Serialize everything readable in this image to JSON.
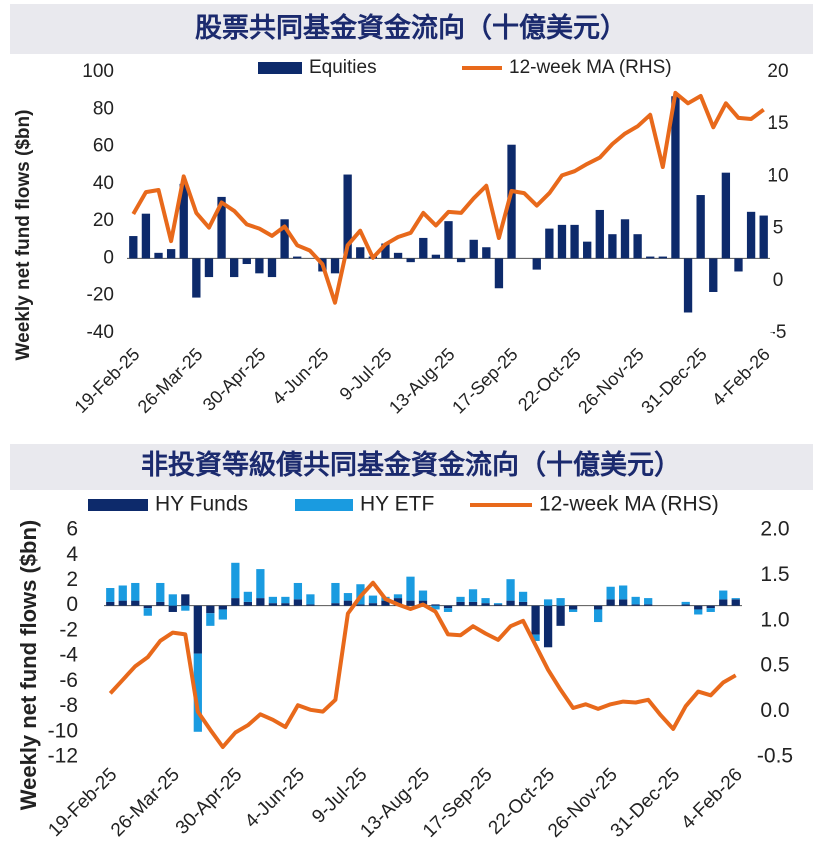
{
  "chart_data": [
    {
      "type": "bar",
      "title": "股票共同基金資金流向（十億美元）",
      "ylabel": "Weekly net fund flows ($bn)",
      "categories": [
        "19-Feb-25",
        null,
        null,
        null,
        null,
        "26-Mar-25",
        null,
        null,
        null,
        null,
        "30-Apr-25",
        null,
        null,
        null,
        null,
        "4-Jun-25",
        null,
        null,
        null,
        null,
        "9-Jul-25",
        null,
        null,
        null,
        null,
        "13-Aug-25",
        null,
        null,
        null,
        null,
        "17-Sep-25",
        null,
        null,
        null,
        null,
        "22-Oct-25",
        null,
        null,
        null,
        null,
        "26-Nov-25",
        null,
        null,
        null,
        null,
        "31-Dec-25",
        null,
        null,
        null,
        null,
        "4-Feb-26"
      ],
      "series": [
        {
          "name": "Equities",
          "type": "bar",
          "color": "#0d2a6b",
          "values": [
            12,
            24,
            3,
            5,
            40,
            -21,
            -10,
            33,
            -10,
            -3,
            -8,
            -10,
            21,
            1,
            0,
            -7,
            -8,
            45,
            6,
            1,
            8,
            3,
            -2,
            11,
            2,
            20,
            -2,
            10,
            6,
            -16,
            61,
            0,
            -6,
            16,
            18,
            18,
            9,
            26,
            13,
            21,
            13,
            1,
            1,
            87,
            -29,
            34,
            -18,
            46,
            -7,
            25,
            23
          ]
        },
        {
          "name": "12-week MA (RHS)",
          "type": "line",
          "axis": "y2",
          "color": "#e8691b",
          "values": [
            6.4,
            8.5,
            8.7,
            3.8,
            10.0,
            6.5,
            5.1,
            7.5,
            6.7,
            5.4,
            5.0,
            4.3,
            5.2,
            3.4,
            2.9,
            1.6,
            -2.1,
            3.4,
            4.8,
            2.2,
            3.5,
            4.2,
            4.6,
            6.5,
            5.3,
            6.6,
            6.5,
            7.9,
            9.1,
            4.1,
            8.6,
            8.4,
            7.2,
            8.4,
            10.1,
            10.5,
            11.2,
            11.8,
            13.1,
            14.1,
            14.8,
            15.9,
            10.9,
            18.0,
            17.0,
            17.7,
            14.7,
            17.0,
            15.6,
            15.5,
            16.4
          ]
        }
      ],
      "ylim": [
        -40,
        100
      ],
      "yticks": [
        100,
        80,
        60,
        40,
        20,
        0,
        -20,
        -40
      ],
      "y2lim": [
        -5,
        20
      ],
      "y2ticks": [
        20,
        15,
        10,
        5,
        0,
        -5
      ]
    },
    {
      "type": "bar",
      "stacked": true,
      "title": "非投資等級債共同基金資金流向（十億美元）",
      "ylabel": "Weekly net fund flows ($bn)",
      "categories": [
        "19-Feb-25",
        null,
        null,
        null,
        null,
        "26-Mar-25",
        null,
        null,
        null,
        null,
        "30-Apr-25",
        null,
        null,
        null,
        null,
        "4-Jun-25",
        null,
        null,
        null,
        null,
        "9-Jul-25",
        null,
        null,
        null,
        null,
        "13-Aug-25",
        null,
        null,
        null,
        null,
        "17-Sep-25",
        null,
        null,
        null,
        null,
        "22-Oct-25",
        null,
        null,
        null,
        null,
        "26-Nov-25",
        null,
        null,
        null,
        null,
        "31-Dec-25",
        null,
        null,
        null,
        null,
        "4-Feb-26"
      ],
      "series": [
        {
          "name": "HY Funds",
          "type": "bar",
          "color": "#0d2a6b",
          "values": [
            0.3,
            0.4,
            0.4,
            -0.2,
            0.3,
            -0.5,
            0.9,
            -3.8,
            -0.6,
            -0.3,
            0.6,
            0.3,
            0.6,
            0.2,
            0.2,
            0.5,
            0.1,
            0,
            0.2,
            0.4,
            0.1,
            0.2,
            0.4,
            0.6,
            0.4,
            0.4,
            0.1,
            -0.2,
            0.3,
            0.3,
            0.2,
            0.1,
            0.4,
            0.3,
            -2.3,
            -3.3,
            -1.6,
            -0.3,
            0,
            -0.3,
            0.5,
            0.5,
            0.1,
            0.1,
            0,
            0,
            0.1,
            -0.3,
            -0.2,
            0.5,
            0.5
          ]
        },
        {
          "name": "HY ETF",
          "type": "bar",
          "color": "#1a9be0",
          "values": [
            1.1,
            1.2,
            1.4,
            -0.6,
            1.5,
            0.9,
            -0.4,
            -6.2,
            -1.0,
            -0.8,
            2.8,
            0.8,
            2.3,
            0.5,
            0.5,
            1.3,
            0.8,
            0,
            1.6,
            0.6,
            1.6,
            0.6,
            0.3,
            0.3,
            1.9,
            0.8,
            -0.3,
            -0.3,
            0.4,
            1.0,
            0.4,
            0.1,
            1.7,
            0.8,
            -0.5,
            0.5,
            0.6,
            -0.2,
            0,
            -1.0,
            1.0,
            1.1,
            0.6,
            0.5,
            0,
            0,
            0.2,
            -0.4,
            -0.3,
            0.7,
            0.1
          ]
        },
        {
          "name": "12-week MA (RHS)",
          "type": "line",
          "axis": "y2",
          "color": "#e8691b",
          "values": [
            0.2,
            0.35,
            0.5,
            0.6,
            0.78,
            0.87,
            0.85,
            0.0,
            -0.2,
            -0.39,
            -0.23,
            -0.15,
            -0.03,
            -0.09,
            -0.17,
            0.07,
            0.02,
            0.0,
            0.13,
            1.08,
            1.27,
            1.42,
            1.24,
            1.18,
            1.13,
            1.18,
            1.1,
            0.85,
            0.84,
            0.94,
            0.86,
            0.79,
            0.94,
            1.0,
            0.73,
            0.46,
            0.24,
            0.04,
            0.08,
            0.03,
            0.08,
            0.11,
            0.1,
            0.13,
            -0.04,
            -0.19,
            0.06,
            0.22,
            0.18,
            0.32,
            0.4
          ]
        }
      ],
      "ylim": [
        -12,
        6
      ],
      "yticks": [
        6,
        4,
        2,
        0,
        -2,
        -4,
        -6,
        -8,
        -10,
        -12
      ],
      "y2lim": [
        -0.5,
        2
      ],
      "y2ticks": [
        {
          "value": 2,
          "label": "2.0"
        },
        1.5,
        {
          "value": 1,
          "label": "1.0"
        },
        0.5,
        {
          "value": 0,
          "label": "0.0"
        },
        -0.5
      ]
    }
  ]
}
